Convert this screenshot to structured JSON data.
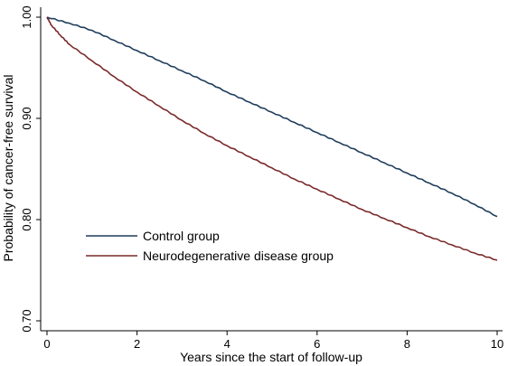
{
  "chart_data": {
    "type": "line",
    "title": "",
    "xlabel": "Years since the start of follow-up",
    "ylabel": "Probability of cancer-free survival",
    "xlim": [
      0,
      10
    ],
    "ylim": [
      0.7,
      1.0
    ],
    "xticks": [
      0,
      2,
      4,
      6,
      8,
      10
    ],
    "xtick_labels": [
      "0",
      "2",
      "4",
      "6",
      "8",
      "10"
    ],
    "yticks": [
      0.7,
      0.8,
      0.9,
      1.0
    ],
    "ytick_labels": [
      "0.70",
      "0.80",
      "0.90",
      "1.00"
    ],
    "grid": false,
    "legend_position": "lower-left inside",
    "series": [
      {
        "name": "Control group",
        "color": "#1f3d5c",
        "x": [
          0,
          0.5,
          1,
          1.5,
          2,
          2.5,
          3,
          3.5,
          4,
          4.5,
          5,
          5.5,
          6,
          6.5,
          7,
          7.5,
          8,
          8.5,
          9,
          9.5,
          10
        ],
        "y": [
          1.0,
          0.994,
          0.987,
          0.977,
          0.967,
          0.957,
          0.947,
          0.937,
          0.926,
          0.916,
          0.906,
          0.896,
          0.886,
          0.876,
          0.866,
          0.856,
          0.846,
          0.836,
          0.826,
          0.815,
          0.803
        ]
      },
      {
        "name": "Neurodegenerative disease group",
        "color": "#7a2a2a",
        "x": [
          0,
          0.1,
          0.3,
          0.5,
          1,
          1.5,
          2,
          2.5,
          3,
          3.5,
          4,
          4.5,
          5,
          5.5,
          6,
          6.5,
          7,
          7.5,
          8,
          8.5,
          9,
          9.5,
          10
        ],
        "y": [
          1.0,
          0.992,
          0.982,
          0.973,
          0.957,
          0.941,
          0.926,
          0.912,
          0.898,
          0.885,
          0.873,
          0.862,
          0.851,
          0.84,
          0.83,
          0.82,
          0.81,
          0.801,
          0.792,
          0.783,
          0.775,
          0.767,
          0.76
        ]
      }
    ]
  }
}
